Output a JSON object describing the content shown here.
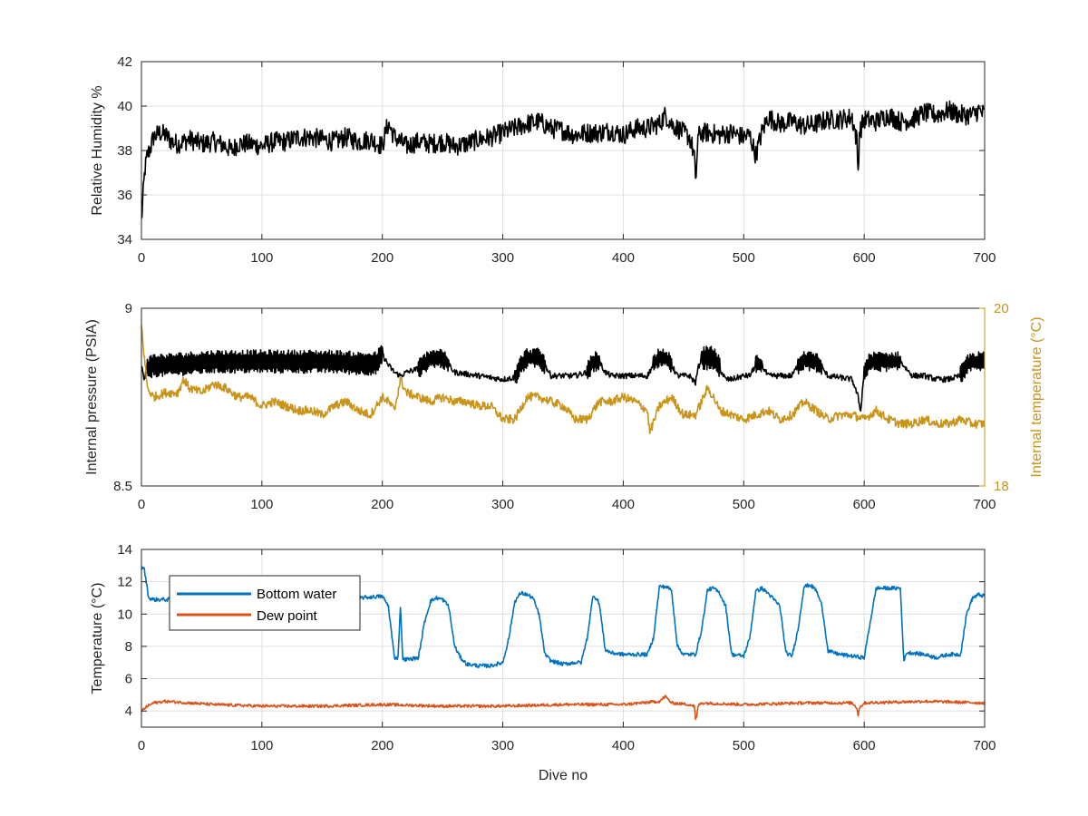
{
  "chart_data": [
    {
      "type": "line",
      "id": "humidity",
      "xlabel": "",
      "ylabel": "Relative Humidity %",
      "xlim": [
        0,
        700
      ],
      "ylim": [
        34,
        42
      ],
      "xticks": [
        0,
        100,
        200,
        300,
        400,
        500,
        600,
        700
      ],
      "yticks": [
        34,
        36,
        38,
        40,
        42
      ],
      "grid": true,
      "series": [
        {
          "name": "",
          "color": "#000000",
          "x": [
            0,
            1,
            2,
            3,
            5,
            8,
            10,
            15,
            20,
            25,
            30,
            40,
            50,
            60,
            70,
            75,
            80,
            90,
            100,
            110,
            120,
            130,
            140,
            150,
            160,
            170,
            180,
            190,
            200,
            203,
            205,
            210,
            220,
            230,
            240,
            250,
            260,
            270,
            280,
            290,
            300,
            310,
            320,
            330,
            340,
            350,
            360,
            370,
            380,
            390,
            400,
            410,
            420,
            430,
            435,
            440,
            450,
            455,
            459,
            460,
            461,
            462,
            465,
            470,
            480,
            490,
            500,
            505,
            510,
            515,
            520,
            530,
            540,
            550,
            560,
            570,
            580,
            590,
            594,
            595,
            596,
            600,
            610,
            620,
            630,
            640,
            650,
            660,
            670,
            680,
            690,
            695,
            700
          ],
          "y": [
            34.8,
            35.6,
            36.5,
            37.2,
            37.8,
            38.2,
            38.6,
            38.8,
            38.7,
            38.4,
            38.3,
            38.5,
            38.3,
            38.4,
            38.2,
            38.0,
            38.3,
            38.3,
            38.2,
            38.4,
            38.4,
            38.6,
            38.6,
            38.5,
            38.4,
            38.6,
            38.4,
            38.5,
            38.2,
            38.9,
            39.2,
            38.6,
            38.2,
            38.4,
            38.3,
            38.4,
            38.2,
            38.3,
            38.5,
            38.6,
            38.8,
            39.0,
            39.2,
            39.3,
            39.0,
            38.9,
            38.7,
            38.8,
            38.8,
            38.9,
            38.7,
            39.0,
            39.0,
            39.2,
            39.6,
            39.2,
            38.8,
            38.6,
            37.8,
            36.4,
            37.5,
            38.6,
            38.8,
            38.8,
            38.7,
            38.8,
            38.6,
            38.7,
            37.8,
            38.8,
            39.5,
            39.2,
            39.3,
            39.1,
            39.2,
            39.4,
            39.4,
            39.5,
            38.4,
            37.0,
            38.8,
            39.4,
            39.3,
            39.6,
            39.3,
            39.4,
            39.7,
            39.6,
            39.8,
            39.6,
            39.6,
            39.8,
            39.6
          ],
          "noise": 0.45
        }
      ]
    },
    {
      "type": "line",
      "id": "pressure-temperature",
      "xlabel": "",
      "ylabel": "Internal pressure (PSIA)",
      "ylabel_right": "Internal temperature (°C)",
      "xlim": [
        0,
        700
      ],
      "ylim": [
        8.5,
        9
      ],
      "ylim_right": [
        18,
        20
      ],
      "xticks": [
        0,
        100,
        200,
        300,
        400,
        500,
        600,
        700
      ],
      "yticks": [
        8.5,
        9
      ],
      "yticks_right": [
        18,
        20
      ],
      "grid": true,
      "series": [
        {
          "name": "",
          "color": "#000000",
          "axis": "left",
          "x": [
            0,
            2,
            5,
            10,
            20,
            40,
            60,
            80,
            100,
            120,
            140,
            160,
            180,
            195,
            200,
            205,
            210,
            215,
            220,
            230,
            235,
            240,
            245,
            250,
            255,
            260,
            270,
            280,
            290,
            300,
            310,
            315,
            320,
            325,
            330,
            335,
            340,
            350,
            360,
            370,
            375,
            380,
            385,
            390,
            400,
            410,
            420,
            425,
            430,
            435,
            440,
            445,
            450,
            455,
            460,
            462,
            465,
            470,
            475,
            480,
            485,
            490,
            500,
            505,
            510,
            515,
            520,
            530,
            540,
            545,
            550,
            555,
            560,
            565,
            570,
            580,
            590,
            595,
            597,
            600,
            605,
            610,
            620,
            630,
            640,
            650,
            660,
            670,
            680,
            685,
            690,
            695,
            700
          ],
          "y": [
            8.84,
            8.8,
            8.83,
            8.84,
            8.84,
            8.845,
            8.85,
            8.85,
            8.85,
            8.85,
            8.85,
            8.85,
            8.845,
            8.845,
            8.87,
            8.84,
            8.82,
            8.81,
            8.82,
            8.83,
            8.845,
            8.86,
            8.86,
            8.86,
            8.84,
            8.82,
            8.815,
            8.81,
            8.805,
            8.8,
            8.805,
            8.84,
            8.86,
            8.86,
            8.86,
            8.84,
            8.81,
            8.81,
            8.81,
            8.82,
            8.85,
            8.85,
            8.82,
            8.81,
            8.81,
            8.81,
            8.81,
            8.84,
            8.865,
            8.86,
            8.84,
            8.81,
            8.81,
            8.81,
            8.79,
            8.83,
            8.86,
            8.86,
            8.86,
            8.83,
            8.8,
            8.8,
            8.81,
            8.81,
            8.84,
            8.84,
            8.81,
            8.81,
            8.81,
            8.84,
            8.855,
            8.85,
            8.85,
            8.83,
            8.81,
            8.805,
            8.8,
            8.75,
            8.71,
            8.82,
            8.85,
            8.85,
            8.85,
            8.85,
            8.81,
            8.81,
            8.8,
            8.8,
            8.81,
            8.84,
            8.85,
            8.85,
            8.85
          ],
          "noise": 0.008,
          "oscillation": [
            [
              5,
              200,
              0.025
            ],
            [
              230,
              255,
              0.02
            ],
            [
              310,
              335,
              0.02
            ],
            [
              370,
              380,
              0.02
            ],
            [
              425,
              440,
              0.02
            ],
            [
              465,
              480,
              0.025
            ],
            [
              510,
              515,
              0.02
            ],
            [
              545,
              565,
              0.02
            ],
            [
              600,
              630,
              0.02
            ],
            [
              680,
              700,
              0.02
            ]
          ]
        },
        {
          "name": "",
          "color": "#c8941a",
          "axis": "right",
          "x": [
            0,
            2,
            5,
            10,
            20,
            30,
            35,
            40,
            50,
            60,
            70,
            80,
            90,
            100,
            110,
            120,
            130,
            140,
            150,
            160,
            170,
            180,
            190,
            200,
            205,
            210,
            215,
            220,
            230,
            240,
            250,
            260,
            270,
            280,
            290,
            300,
            310,
            320,
            330,
            340,
            350,
            360,
            370,
            380,
            390,
            400,
            410,
            420,
            422,
            430,
            440,
            450,
            460,
            470,
            475,
            480,
            490,
            500,
            510,
            520,
            530,
            540,
            550,
            560,
            570,
            580,
            590,
            600,
            610,
            620,
            630,
            640,
            650,
            660,
            670,
            680,
            690,
            700
          ],
          "y": [
            19.8,
            19.5,
            19.1,
            19.0,
            19.05,
            19.05,
            19.2,
            19.1,
            19.05,
            19.15,
            19.1,
            19.0,
            19.0,
            18.9,
            18.95,
            18.9,
            18.85,
            18.85,
            18.8,
            18.9,
            18.95,
            18.85,
            18.8,
            19.0,
            18.95,
            18.85,
            19.2,
            19.05,
            19.0,
            18.95,
            19.0,
            18.95,
            18.95,
            18.9,
            18.9,
            18.75,
            18.75,
            19.0,
            19.0,
            18.95,
            18.9,
            18.75,
            18.75,
            18.95,
            18.95,
            19.0,
            18.95,
            18.85,
            18.6,
            18.9,
            19.0,
            18.8,
            18.8,
            19.1,
            19.0,
            18.85,
            18.8,
            18.75,
            18.8,
            18.85,
            18.75,
            18.8,
            18.95,
            18.85,
            18.75,
            18.8,
            18.8,
            18.75,
            18.85,
            18.75,
            18.7,
            18.7,
            18.75,
            18.7,
            18.7,
            18.75,
            18.7,
            18.7
          ],
          "noise": 0.05
        }
      ]
    },
    {
      "type": "line",
      "id": "temperature",
      "xlabel": "Dive no",
      "ylabel": "Temperature (°C)",
      "xlim": [
        0,
        700
      ],
      "ylim": [
        3,
        14
      ],
      "xticks": [
        0,
        100,
        200,
        300,
        400,
        500,
        600,
        700
      ],
      "yticks": [
        4,
        6,
        8,
        10,
        12,
        14
      ],
      "grid": true,
      "legend": "top-left",
      "series": [
        {
          "name": "Bottom water",
          "color": "#0072bd",
          "x": [
            0,
            2,
            4,
            6,
            10,
            20,
            30,
            40,
            100,
            150,
            180,
            200,
            205,
            210,
            213,
            215,
            217,
            219,
            222,
            230,
            235,
            240,
            245,
            250,
            255,
            260,
            265,
            270,
            280,
            290,
            300,
            305,
            310,
            315,
            320,
            325,
            330,
            335,
            340,
            350,
            360,
            365,
            370,
            375,
            380,
            385,
            390,
            400,
            410,
            420,
            425,
            430,
            435,
            440,
            445,
            450,
            455,
            460,
            465,
            470,
            475,
            480,
            485,
            490,
            500,
            505,
            510,
            515,
            520,
            530,
            535,
            540,
            545,
            550,
            555,
            560,
            565,
            570,
            580,
            590,
            600,
            605,
            610,
            620,
            630,
            633,
            635,
            640,
            650,
            660,
            670,
            680,
            685,
            690,
            695,
            700
          ],
          "y": [
            12.8,
            12.9,
            12.0,
            11.0,
            10.9,
            10.9,
            10.9,
            10.9,
            10.9,
            10.9,
            11.0,
            11.1,
            10.5,
            7.3,
            7.3,
            10.5,
            7.2,
            7.2,
            7.2,
            7.3,
            9.5,
            10.8,
            11.0,
            10.9,
            10.5,
            8.0,
            7.3,
            6.9,
            6.8,
            6.8,
            7.0,
            8.5,
            10.8,
            11.3,
            11.2,
            11.0,
            10.0,
            7.5,
            7.1,
            6.9,
            7.0,
            7.0,
            8.5,
            11.2,
            10.7,
            7.8,
            7.6,
            7.5,
            7.5,
            7.5,
            8.5,
            11.7,
            11.7,
            11.5,
            8.0,
            7.5,
            7.5,
            7.5,
            9.0,
            11.5,
            11.6,
            11.3,
            10.5,
            7.5,
            7.4,
            8.5,
            11.4,
            11.6,
            11.3,
            10.5,
            7.6,
            7.4,
            9.0,
            11.7,
            11.8,
            11.5,
            10.5,
            7.7,
            7.5,
            7.4,
            7.3,
            9.5,
            11.6,
            11.6,
            11.6,
            7.0,
            7.6,
            7.6,
            7.5,
            7.3,
            7.5,
            7.5,
            10.0,
            11.0,
            11.2,
            11.1
          ],
          "noise": 0.12
        },
        {
          "name": "Dew point",
          "color": "#d95319",
          "x": [
            0,
            5,
            10,
            20,
            40,
            60,
            100,
            150,
            200,
            250,
            300,
            350,
            400,
            430,
            435,
            440,
            455,
            459,
            460,
            461,
            462,
            465,
            500,
            550,
            590,
            594,
            595,
            596,
            600,
            650,
            700
          ],
          "y": [
            4.0,
            4.3,
            4.5,
            4.6,
            4.5,
            4.4,
            4.3,
            4.3,
            4.4,
            4.3,
            4.3,
            4.4,
            4.4,
            4.6,
            4.9,
            4.5,
            4.4,
            4.3,
            3.5,
            3.6,
            4.3,
            4.5,
            4.4,
            4.5,
            4.5,
            4.2,
            3.7,
            4.2,
            4.5,
            4.6,
            4.5
          ],
          "noise": 0.09
        }
      ]
    }
  ]
}
